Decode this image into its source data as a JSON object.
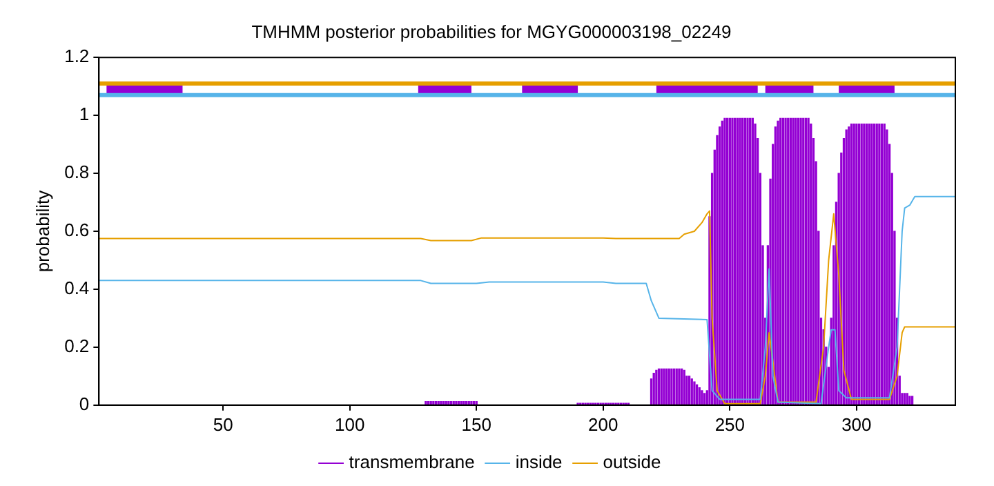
{
  "chart_data": {
    "type": "line",
    "title": "TMHMM posterior probabilities for MGYG000003198_02249",
    "ylabel": "probability",
    "xlim": [
      1,
      339
    ],
    "xticks": [
      50,
      100,
      150,
      200,
      250,
      300
    ],
    "ylim": [
      0,
      1.2
    ],
    "yticks": [
      0,
      {
        "value": 0.2,
        "label": "0.2"
      },
      {
        "value": 0.4,
        "label": "0.4"
      },
      {
        "value": 0.6,
        "label": "0.6"
      },
      {
        "value": 0.8,
        "label": "0.8"
      },
      1,
      {
        "value": 1.2,
        "label": "1.2"
      }
    ],
    "grid": false,
    "legend": "bottom",
    "marker": "none",
    "line_style": "solid",
    "series": [
      {
        "name": "transmembrane",
        "type": "bar",
        "color": "#9400d3",
        "x": [
          130,
          131,
          132,
          133,
          134,
          135,
          136,
          137,
          138,
          139,
          140,
          141,
          142,
          143,
          144,
          145,
          146,
          147,
          148,
          149,
          150,
          190,
          191,
          192,
          193,
          194,
          195,
          196,
          197,
          198,
          199,
          200,
          201,
          202,
          203,
          204,
          205,
          206,
          207,
          208,
          209,
          210,
          219,
          220,
          221,
          222,
          223,
          224,
          225,
          226,
          227,
          228,
          229,
          230,
          231,
          232,
          233,
          234,
          235,
          236,
          237,
          238,
          239,
          240,
          241,
          242,
          243,
          244,
          245,
          246,
          247,
          248,
          249,
          250,
          251,
          252,
          253,
          254,
          255,
          256,
          257,
          258,
          259,
          260,
          261,
          262,
          263,
          264,
          265,
          266,
          267,
          268,
          269,
          270,
          271,
          272,
          273,
          274,
          275,
          276,
          277,
          278,
          279,
          280,
          281,
          282,
          283,
          284,
          285,
          286,
          287,
          288,
          289,
          290,
          291,
          292,
          293,
          294,
          295,
          296,
          297,
          298,
          299,
          300,
          301,
          302,
          303,
          304,
          305,
          306,
          307,
          308,
          309,
          310,
          311,
          312,
          313,
          314,
          315,
          316,
          317,
          318,
          319,
          320,
          321,
          322
        ],
        "values": [
          0.012,
          0.012,
          0.012,
          0.012,
          0.012,
          0.012,
          0.012,
          0.012,
          0.012,
          0.012,
          0.012,
          0.012,
          0.012,
          0.012,
          0.012,
          0.012,
          0.012,
          0.012,
          0.012,
          0.012,
          0.012,
          0.006,
          0.006,
          0.006,
          0.006,
          0.006,
          0.006,
          0.006,
          0.006,
          0.006,
          0.006,
          0.006,
          0.006,
          0.006,
          0.006,
          0.006,
          0.006,
          0.006,
          0.006,
          0.006,
          0.006,
          0.006,
          0.09,
          0.11,
          0.12,
          0.125,
          0.125,
          0.125,
          0.125,
          0.125,
          0.125,
          0.125,
          0.125,
          0.125,
          0.125,
          0.12,
          0.1,
          0.1,
          0.09,
          0.08,
          0.07,
          0.06,
          0.05,
          0.04,
          0.05,
          0.65,
          0.8,
          0.88,
          0.93,
          0.96,
          0.98,
          0.99,
          0.99,
          0.99,
          0.99,
          0.99,
          0.99,
          0.99,
          0.99,
          0.99,
          0.99,
          0.99,
          0.99,
          0.97,
          0.92,
          0.8,
          0.55,
          0.3,
          0.55,
          0.78,
          0.9,
          0.96,
          0.98,
          0.99,
          0.99,
          0.99,
          0.99,
          0.99,
          0.99,
          0.99,
          0.99,
          0.99,
          0.99,
          0.99,
          0.99,
          0.97,
          0.92,
          0.84,
          0.6,
          0.3,
          0.26,
          0.2,
          0.13,
          0.3,
          0.55,
          0.7,
          0.8,
          0.87,
          0.92,
          0.95,
          0.96,
          0.97,
          0.97,
          0.97,
          0.97,
          0.97,
          0.97,
          0.97,
          0.97,
          0.97,
          0.97,
          0.97,
          0.97,
          0.97,
          0.97,
          0.95,
          0.9,
          0.8,
          0.6,
          0.3,
          0.1,
          0.04,
          0.04,
          0.04,
          0.03,
          0.03
        ]
      },
      {
        "name": "inside",
        "color": "#56b4e9",
        "x": [
          1,
          128,
          132,
          150,
          155,
          200,
          205,
          217,
          219,
          222,
          241,
          243,
          246,
          262,
          264,
          265.5,
          267,
          269,
          286,
          289,
          290,
          291.5,
          293,
          296,
          313,
          316,
          318,
          319,
          321,
          323,
          339
        ],
        "values": [
          0.43,
          0.43,
          0.42,
          0.42,
          0.425,
          0.425,
          0.42,
          0.42,
          0.36,
          0.3,
          0.295,
          0.05,
          0.02,
          0.02,
          0.2,
          0.47,
          0.1,
          0.01,
          0.005,
          0.2,
          0.26,
          0.26,
          0.05,
          0.025,
          0.025,
          0.2,
          0.6,
          0.68,
          0.69,
          0.72,
          0.72
        ]
      },
      {
        "name": "outside",
        "color": "#e69f00",
        "x": [
          1,
          128,
          132,
          148,
          152,
          200,
          205,
          230,
          232,
          236,
          239,
          241,
          242,
          243,
          245,
          248,
          262,
          264,
          265.5,
          267,
          269,
          284,
          287,
          289,
          291,
          293,
          295,
          298,
          313,
          316,
          318,
          319,
          339
        ],
        "values": [
          0.575,
          0.575,
          0.568,
          0.568,
          0.577,
          0.577,
          0.575,
          0.575,
          0.59,
          0.6,
          0.63,
          0.66,
          0.67,
          0.3,
          0.05,
          0.005,
          0.005,
          0.1,
          0.25,
          0.15,
          0.01,
          0.01,
          0.2,
          0.5,
          0.66,
          0.45,
          0.12,
          0.02,
          0.02,
          0.1,
          0.25,
          0.27,
          0.27
        ]
      },
      {
        "color": "#56b4e9",
        "x": [
          1,
          339
        ],
        "values": [
          1.07,
          1.07
        ]
      },
      {
        "color": "#e69f00",
        "x": [
          1,
          339
        ],
        "values": [
          1.11,
          1.11
        ]
      },
      {
        "color": "#9400d3",
        "x": [
          4,
          34,
          35,
          127,
          148,
          149,
          168,
          190,
          191,
          221,
          261,
          262,
          264,
          283,
          284,
          293,
          315
        ],
        "values": [
          1.09,
          1.09,
          null,
          1.09,
          1.09,
          null,
          1.09,
          1.09,
          null,
          1.09,
          1.09,
          null,
          1.09,
          1.09,
          null,
          1.09,
          1.09
        ]
      }
    ]
  }
}
